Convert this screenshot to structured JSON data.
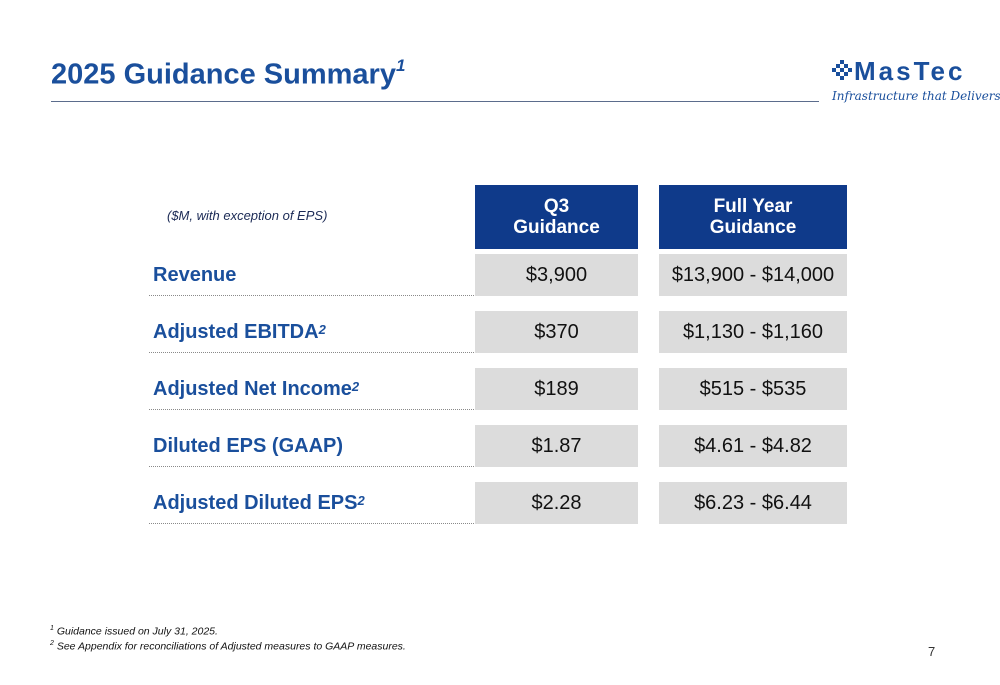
{
  "header": {
    "title": "2025 Guidance Summary",
    "title_superscript": "1"
  },
  "logo": {
    "wordmark": "MasTec",
    "tagline": "Infrastructure that Delivers"
  },
  "table": {
    "units_note": "($M, with exception of EPS)",
    "columns": [
      {
        "line1": "Q3",
        "line2": "Guidance"
      },
      {
        "line1": "Full Year",
        "line2": "Guidance"
      }
    ],
    "rows": [
      {
        "label": "Revenue",
        "sup": "",
        "q3": "$3,900",
        "fy": "$13,900 - $14,000"
      },
      {
        "label": "Adjusted EBITDA",
        "sup": "2",
        "q3": "$370",
        "fy": "$1,130 - $1,160"
      },
      {
        "label": "Adjusted Net Income",
        "sup": "2",
        "q3": "$189",
        "fy": "$515 - $535"
      },
      {
        "label": "Diluted EPS (GAAP)",
        "sup": "",
        "q3": "$1.87",
        "fy": "$4.61 - $4.82"
      },
      {
        "label": "Adjusted Diluted EPS",
        "sup": "2",
        "q3": "$2.28",
        "fy": "$6.23 - $6.44"
      }
    ]
  },
  "footnotes": [
    {
      "marker": "1",
      "text": "Guidance issued on July 31, 2025."
    },
    {
      "marker": "2",
      "text": "See Appendix for reconciliations of Adjusted measures to GAAP measures."
    }
  ],
  "page_number": "7",
  "colors": {
    "brand_blue": "#1a4f9c",
    "header_fill": "#0f3a8a",
    "cell_fill": "#dcdcdc"
  }
}
